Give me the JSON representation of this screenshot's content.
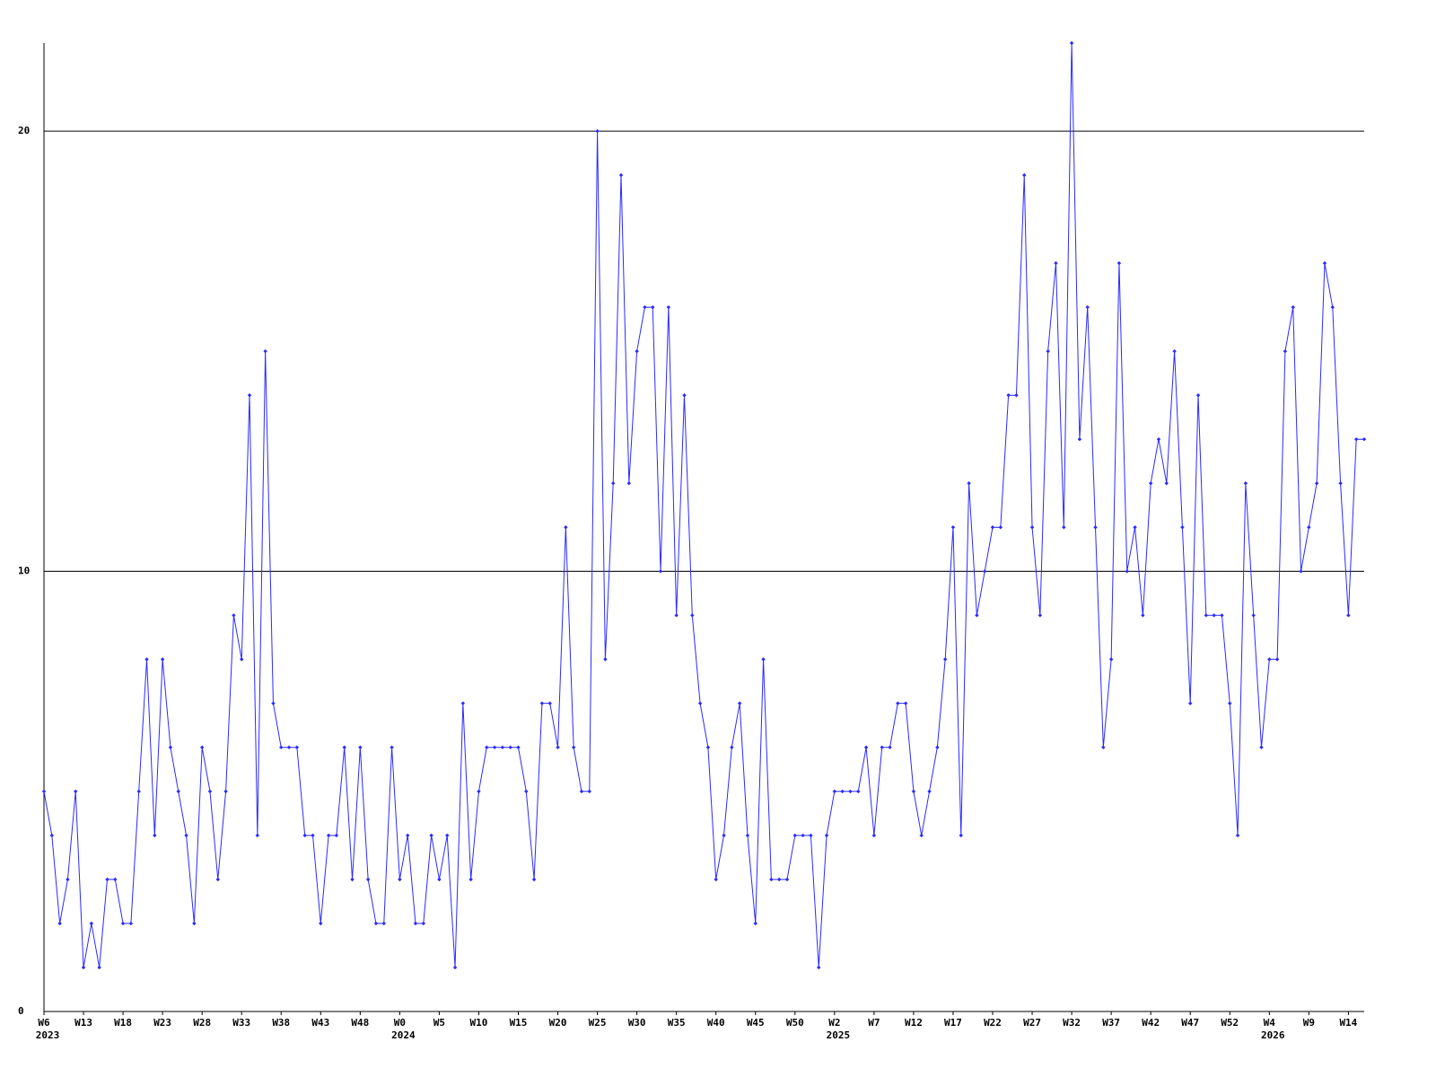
{
  "chart_data": {
    "type": "line",
    "categories": [
      "W6",
      null,
      null,
      null,
      null,
      "W13",
      null,
      null,
      null,
      null,
      "W18",
      null,
      null,
      null,
      null,
      "W23",
      null,
      null,
      null,
      null,
      "W28",
      null,
      null,
      null,
      null,
      "W33",
      null,
      null,
      null,
      null,
      "W38",
      null,
      null,
      null,
      null,
      "W43",
      null,
      null,
      null,
      null,
      "W48",
      null,
      null,
      null,
      null,
      "W0",
      null,
      null,
      null,
      null,
      "W5",
      null,
      null,
      null,
      null,
      "W10",
      null,
      null,
      null,
      null,
      "W15",
      null,
      null,
      null,
      null,
      "W20",
      null,
      null,
      null,
      null,
      "W25",
      null,
      null,
      null,
      null,
      "W30",
      null,
      null,
      null,
      null,
      "W35",
      null,
      null,
      null,
      null,
      "W40",
      null,
      null,
      null,
      null,
      "W45",
      null,
      null,
      null,
      null,
      "W50",
      null,
      null,
      null,
      null,
      "W2",
      null,
      null,
      null,
      null,
      "W7",
      null,
      null,
      null,
      null,
      "W12",
      null,
      null,
      null,
      null,
      "W17",
      null,
      null,
      null,
      null,
      "W22",
      null,
      null,
      null,
      null,
      "W27",
      null,
      null,
      null,
      null,
      "W32",
      null,
      null,
      null,
      null,
      "W37",
      null,
      null,
      null,
      null,
      "W42",
      null,
      null,
      null,
      null,
      "W47",
      null,
      null,
      null,
      null,
      "W52",
      null,
      null,
      null,
      null,
      "W4",
      null,
      null,
      null,
      null,
      "W9",
      null,
      null,
      null,
      null,
      "W14",
      null,
      null
    ],
    "category_years": [
      "2023",
      null,
      null,
      null,
      null,
      null,
      null,
      null,
      null,
      null,
      null,
      null,
      null,
      null,
      null,
      null,
      null,
      null,
      null,
      null,
      null,
      null,
      null,
      null,
      null,
      null,
      null,
      null,
      null,
      null,
      null,
      null,
      null,
      null,
      null,
      null,
      null,
      null,
      null,
      null,
      null,
      null,
      null,
      null,
      null,
      "2024",
      null,
      null,
      null,
      null,
      null,
      null,
      null,
      null,
      null,
      null,
      null,
      null,
      null,
      null,
      null,
      null,
      null,
      null,
      null,
      null,
      null,
      null,
      null,
      null,
      null,
      null,
      null,
      null,
      null,
      null,
      null,
      null,
      null,
      null,
      null,
      null,
      null,
      null,
      null,
      null,
      null,
      null,
      null,
      null,
      null,
      null,
      null,
      null,
      null,
      null,
      null,
      null,
      null,
      null,
      "2025",
      null,
      null,
      null,
      null,
      null,
      null,
      null,
      null,
      null,
      null,
      null,
      null,
      null,
      null,
      null,
      null,
      null,
      null,
      null,
      null,
      null,
      null,
      null,
      null,
      null,
      null,
      null,
      null,
      null,
      null,
      null,
      null,
      null,
      null,
      null,
      null,
      null,
      null,
      null,
      null,
      null,
      null,
      null,
      null,
      null,
      null,
      null,
      null,
      null,
      null,
      null,
      null,
      null,
      null,
      "2026",
      null,
      null,
      null,
      null,
      null,
      null,
      null,
      null,
      null,
      null,
      null,
      null
    ],
    "series": [
      {
        "color": "#2a2aff",
        "values": [
          5,
          4,
          2,
          3,
          5,
          1,
          2,
          1,
          3,
          3,
          2,
          2,
          5,
          8,
          4,
          8,
          6,
          5,
          4,
          2,
          6,
          5,
          3,
          5,
          9,
          8,
          14,
          4,
          15,
          7,
          6,
          6,
          6,
          4,
          4,
          2,
          4,
          4,
          6,
          3,
          6,
          3,
          2,
          2,
          6,
          3,
          4,
          2,
          2,
          4,
          3,
          4,
          1,
          7,
          3,
          5,
          6,
          6,
          6,
          6,
          6,
          5,
          3,
          7,
          7,
          6,
          11,
          6,
          5,
          5,
          20,
          8,
          12,
          19,
          12,
          15,
          16,
          16,
          10,
          16,
          9,
          14,
          9,
          7,
          6,
          3,
          4,
          6,
          7,
          4,
          2,
          8,
          3,
          3,
          3,
          4,
          4,
          4,
          1,
          4,
          5,
          5,
          5,
          5,
          6,
          4,
          6,
          6,
          7,
          7,
          5,
          4,
          5,
          6,
          8,
          11,
          4,
          12,
          9,
          10,
          11,
          11,
          14,
          14,
          19,
          11,
          9,
          15,
          17,
          11,
          22,
          13,
          16,
          11,
          6,
          8,
          17,
          10,
          11,
          9,
          12,
          13,
          12,
          15,
          11,
          7,
          14,
          9,
          9,
          9,
          7,
          4,
          12,
          9,
          6,
          8,
          8,
          15,
          16,
          10,
          11,
          12,
          17,
          16,
          12,
          9,
          13,
          13
        ]
      }
    ],
    "ylim": [
      0,
      22
    ],
    "yticks": [
      0,
      10,
      20
    ],
    "grid": true
  }
}
